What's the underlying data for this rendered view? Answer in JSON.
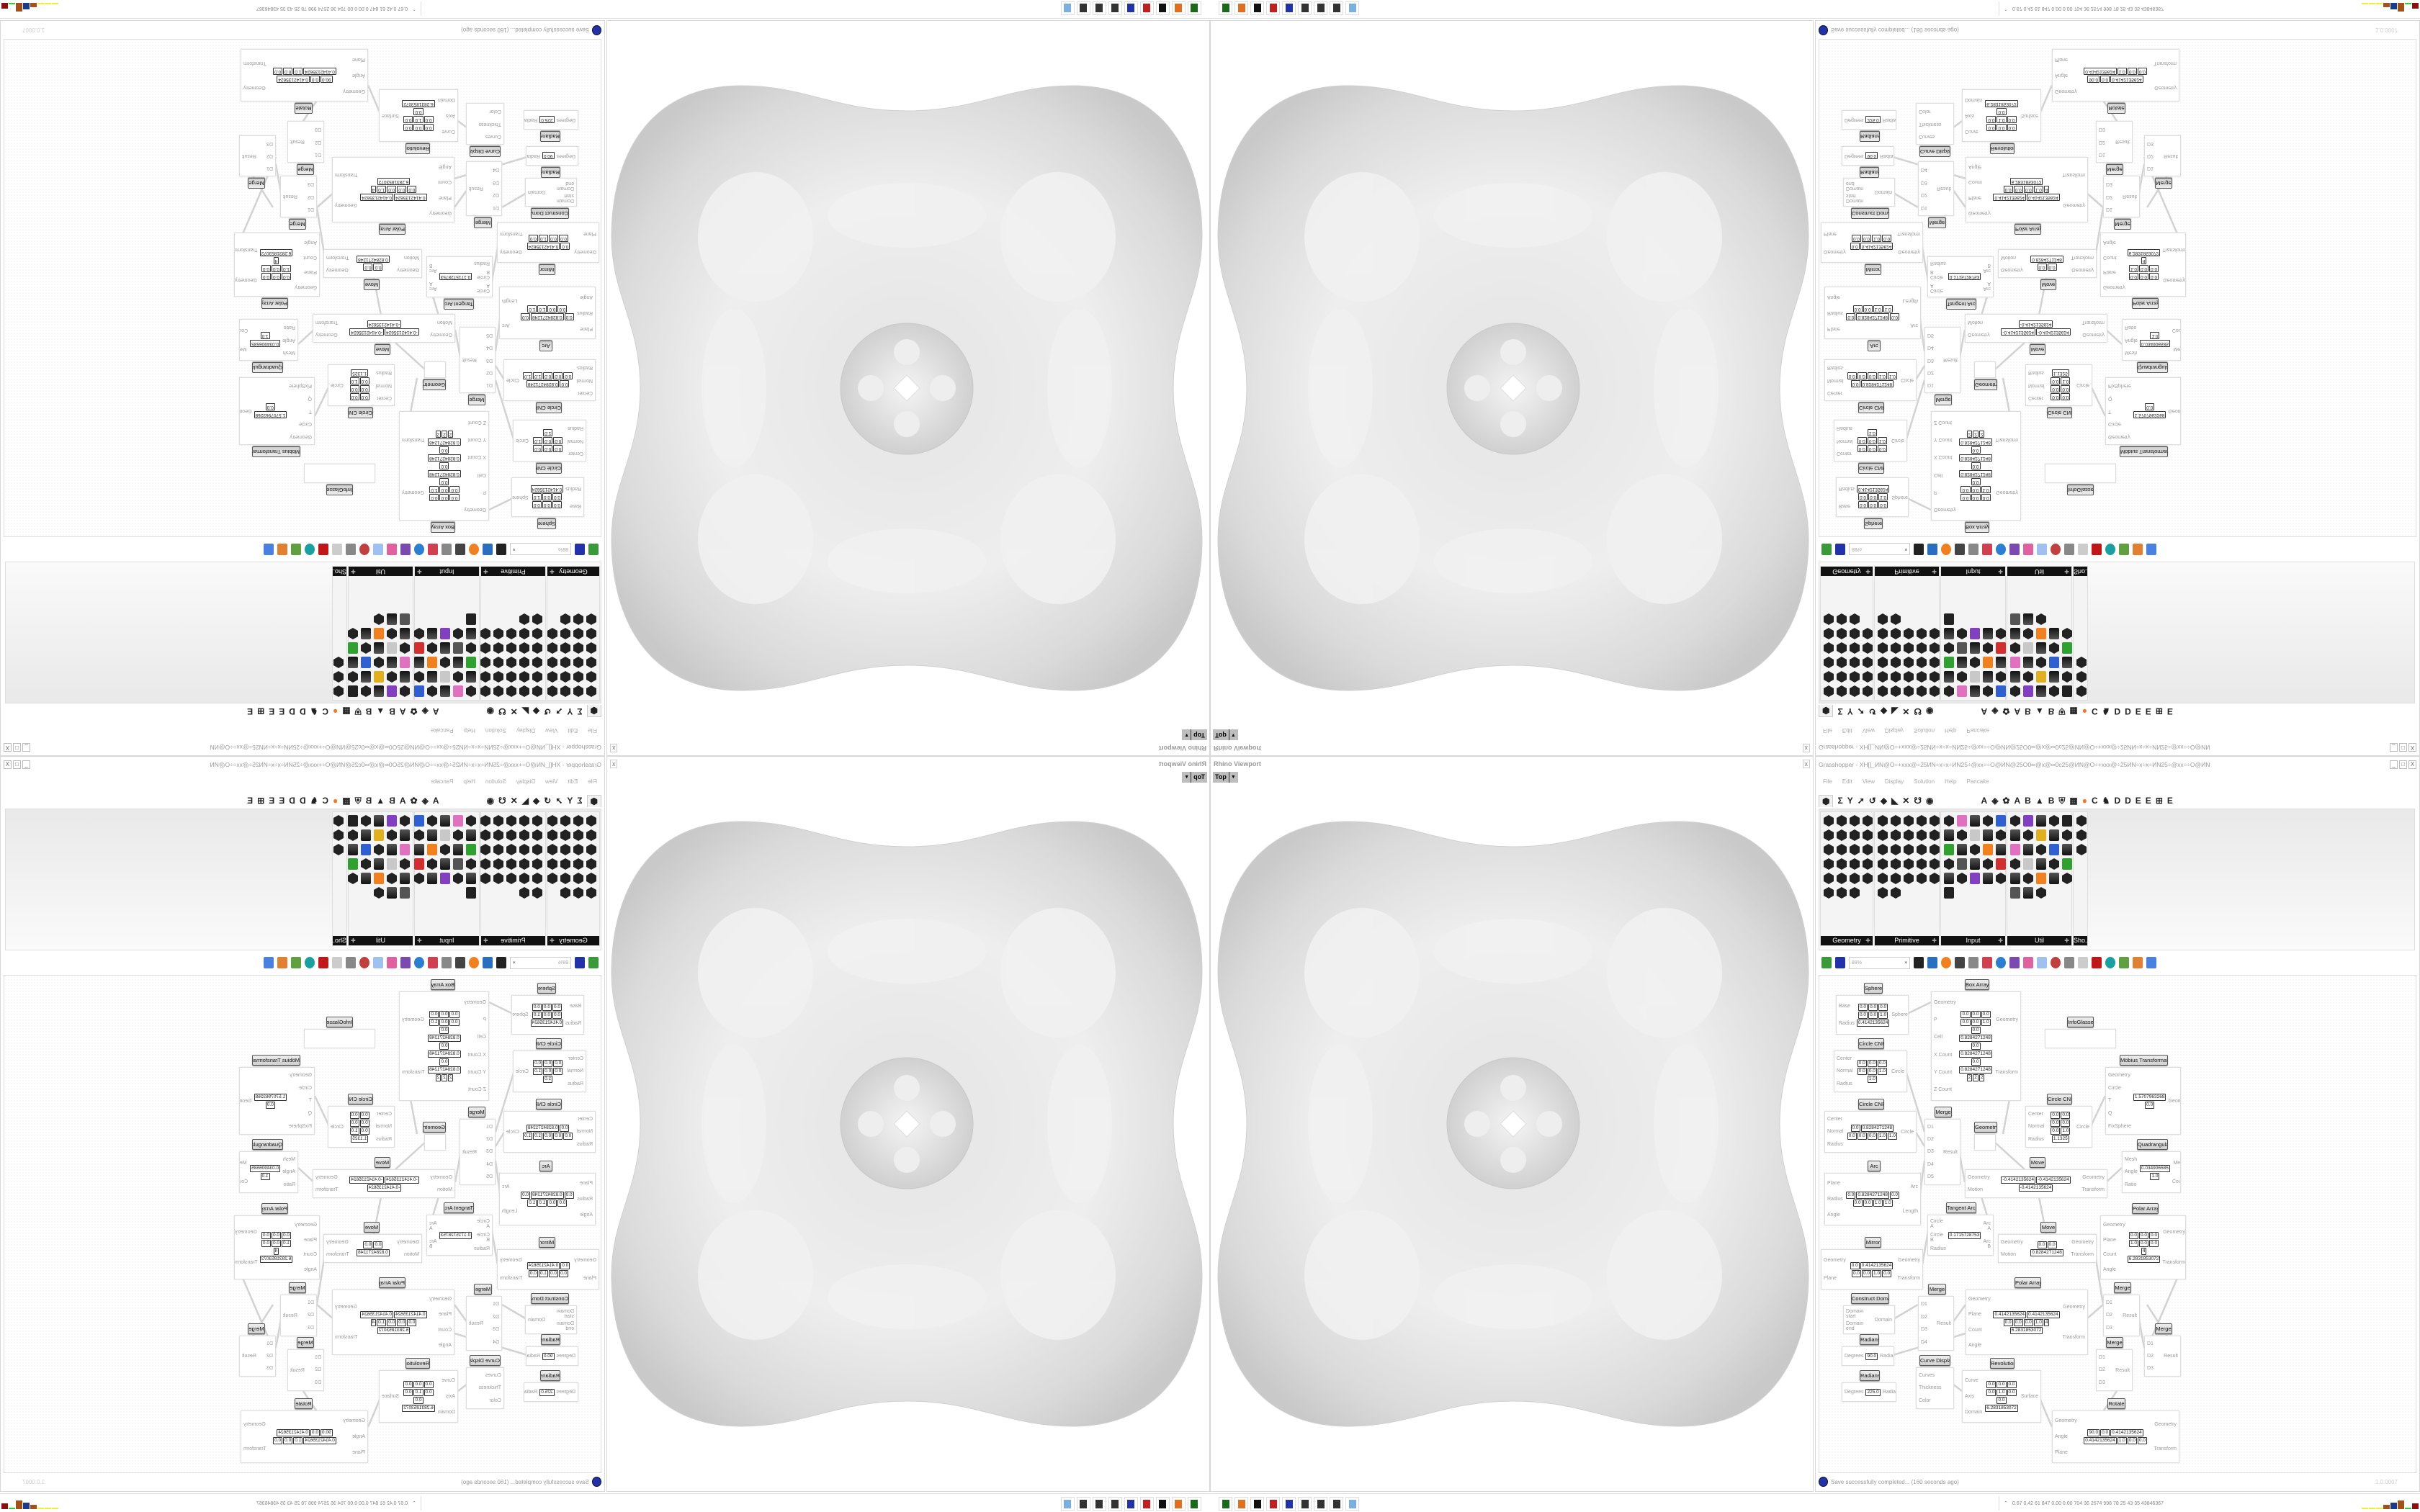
{
  "colors": {
    "accent_orange": "#f07820",
    "status_blue": "#2233aa",
    "palette_label_bg": "#111111",
    "mesh_gray": "#d6d6d6"
  },
  "viewport": {
    "title": "Rhino Viewport",
    "view_name": "Top",
    "close_label": "x"
  },
  "grasshopper": {
    "title": "Grasshopper - XH[]_ИN@O÷+xxx@÷25ИN÷x÷x÷ИN25÷@xx÷÷O@ИN@25O0∞@x@∞0c25@ИN@O÷+xxx@÷25ИN÷x÷x÷ИN25÷@xx÷÷O@ИN",
    "window_buttons": [
      "_",
      "□",
      "X"
    ],
    "menu": [
      "File",
      "Edit",
      "View",
      "Display",
      "Solution",
      "Help",
      "Pancake"
    ],
    "tabs": [
      "⬢",
      "Σ",
      "Y",
      "➚",
      "↺",
      "◆",
      "◣",
      "✕",
      "☋",
      "◉",
      "A",
      "◈",
      "✿",
      "A",
      "B",
      "▲",
      "B",
      "⛨",
      "▦",
      "●",
      "C",
      "♞",
      "D",
      "D",
      "E",
      "E",
      "⊞",
      "E"
    ],
    "palette_groups": [
      {
        "label": "Geometry"
      },
      {
        "label": "Primitive"
      },
      {
        "label": "Input"
      },
      {
        "label": "Util"
      },
      {
        "label": "Sho..."
      }
    ],
    "zoom": "88%",
    "status": "Save successfully completed... (160 seconds ago)",
    "version": "1.0.0007"
  },
  "canvas": {
    "components": [
      {
        "title": "Sphere",
        "inputs": [
          "Base",
          "Radius"
        ],
        "outputs": [
          "Sphere"
        ],
        "values": [
          "0.0",
          "0.0",
          "0.0",
          "0.0",
          "0.0",
          "1.0",
          "0.4142135624"
        ]
      },
      {
        "title": "Box Array",
        "inputs": [
          "Geometry",
          "P",
          "Cell",
          "X Count",
          "Y Count",
          "Z Count"
        ],
        "outputs": [
          "Geometry",
          "Transform"
        ],
        "values": [
          "0.0",
          "0.0",
          "0.0",
          "0.0",
          "0.0",
          "1.0",
          "0.0",
          "0.8284271248",
          "0.0",
          "0.8284271248",
          "0.0",
          "0.8284271248",
          "2",
          "2",
          "2"
        ]
      },
      {
        "title": "Circle CNR",
        "inputs": [
          "Center",
          "Normal",
          "Radius"
        ],
        "outputs": [
          "Circle"
        ],
        "values": [
          "0.0",
          "0.0",
          "0.0",
          "0.0",
          "0.0",
          "1.0",
          "1.0"
        ]
      },
      {
        "title": "Circle CNR",
        "inputs": [
          "Center",
          "Normal",
          "Radius"
        ],
        "outputs": [
          "Circle"
        ],
        "values": [
          "0.0",
          "0.8284271248",
          "0.0",
          "0.0",
          "0.0",
          "1.0",
          "1.0"
        ]
      },
      {
        "title": "Arc",
        "inputs": [
          "Plane",
          "Radius",
          "Angle"
        ],
        "outputs": [
          "Arc",
          "Length"
        ],
        "values": [
          "0.0",
          "0.8284271248",
          "0.0",
          "0.0",
          "0.0",
          "1.0",
          "1.0"
        ]
      },
      {
        "title": "Merge",
        "inputs": [
          "D1",
          "D2",
          "D3",
          "D4",
          "D5"
        ],
        "outputs": [
          "Result"
        ],
        "values": []
      },
      {
        "title": "Geometry",
        "inputs": [],
        "outputs": [],
        "values": []
      },
      {
        "title": "InfoGlasses",
        "inputs": [],
        "outputs": [],
        "values": []
      },
      {
        "title": "Möbius Transformation",
        "inputs": [
          "Geometry",
          "Circle",
          "T",
          "Q",
          "FixSphere"
        ],
        "outputs": [
          "Geometry"
        ],
        "values": [
          "1.5707963268",
          "0.0"
        ]
      },
      {
        "title": "Circle CNR",
        "inputs": [
          "Center",
          "Normal",
          "Radius"
        ],
        "outputs": [
          "Circle"
        ],
        "values": [
          "0.0",
          "0.0",
          "0.0",
          "0.0",
          "0.0",
          "1.0",
          "1.1325"
        ]
      },
      {
        "title": "Quadrangulate",
        "inputs": [
          "Mesh",
          "Angle",
          "Ratio"
        ],
        "outputs": [
          "Mesh",
          "Count"
        ],
        "values": [
          "0.034906585",
          "1.0"
        ]
      },
      {
        "title": "Move",
        "inputs": [
          "Geometry",
          "Motion"
        ],
        "outputs": [
          "Geometry",
          "Transform"
        ],
        "values": [
          "-0.4142135624",
          "-0.4142135624",
          "-0.4142135624"
        ]
      },
      {
        "title": "Tangent Arcs",
        "inputs": [
          "Circle A",
          "Circle B",
          "Radius"
        ],
        "outputs": [
          "Arc A",
          "Arc B"
        ],
        "values": [
          "0.1715728753"
        ]
      },
      {
        "title": "Polar Array",
        "inputs": [
          "Geometry",
          "Plane",
          "Count",
          "Angle"
        ],
        "outputs": [
          "Geometry",
          "Transform"
        ],
        "values": [
          "0.0",
          "0.0",
          "0.0",
          "1.0",
          "0.0",
          "0.0",
          "4",
          "6.2831853072"
        ]
      },
      {
        "title": "Mirror",
        "inputs": [
          "Geometry",
          "Plane"
        ],
        "outputs": [
          "Geometry",
          "Transform"
        ],
        "values": [
          "0.0",
          "0.4142135624",
          "0.0",
          "0.0",
          "1.0",
          "0.0"
        ]
      },
      {
        "title": "Move",
        "inputs": [
          "Geometry",
          "Motion"
        ],
        "outputs": [
          "Geometry",
          "Transform"
        ],
        "values": [
          "0.0",
          "0.0",
          "0.8284271248"
        ]
      },
      {
        "title": "Construct Domain",
        "inputs": [
          "Domain start",
          "Domain end"
        ],
        "outputs": [
          "Domain"
        ],
        "values": []
      },
      {
        "title": "Merge",
        "inputs": [
          "D1",
          "D2",
          "D3",
          "D4"
        ],
        "outputs": [
          "Result"
        ],
        "values": []
      },
      {
        "title": "Polar Array",
        "inputs": [
          "Geometry",
          "Plane",
          "Count",
          "Angle"
        ],
        "outputs": [
          "Geometry",
          "Transform"
        ],
        "values": [
          "0.4142135624",
          "0.4142135624",
          "0.0",
          "0.0",
          "0.0",
          "1.0",
          "4",
          "6.2831853072"
        ]
      },
      {
        "title": "Merge",
        "inputs": [
          "D1",
          "D2",
          "D3"
        ],
        "outputs": [
          "Result"
        ],
        "values": []
      },
      {
        "title": "Merge",
        "inputs": [
          "D1",
          "D2",
          "D3"
        ],
        "outputs": [
          "Result"
        ],
        "values": []
      },
      {
        "title": "Merge",
        "inputs": [
          "D1",
          "D2",
          "D3"
        ],
        "outputs": [
          "Result"
        ],
        "values": []
      },
      {
        "title": "Radians",
        "inputs": [
          "Degrees"
        ],
        "outputs": [
          "Radians"
        ],
        "values": [
          "90.0"
        ]
      },
      {
        "title": "Radians",
        "inputs": [
          "Degrees"
        ],
        "outputs": [
          "Radians"
        ],
        "values": [
          "225.0"
        ]
      },
      {
        "title": "Curve Display",
        "inputs": [
          "Curves",
          "Thickness",
          "Color"
        ],
        "outputs": [],
        "values": []
      },
      {
        "title": "Revolution",
        "inputs": [
          "Curve",
          "Axis",
          "Domain"
        ],
        "outputs": [
          "Surface"
        ],
        "values": [
          "0.0",
          "0.0",
          "0.0",
          "0.0",
          "1.0",
          "0.0",
          "0.0",
          "6.2831853072"
        ]
      },
      {
        "title": "Rotate",
        "inputs": [
          "Geometry",
          "Angle",
          "Plane"
        ],
        "outputs": [
          "Geometry",
          "Transform"
        ],
        "values": [
          "90.0",
          "0.0",
          "0.4142135624",
          "0.4142135624",
          "1.0",
          "0.0",
          "0.0"
        ]
      }
    ]
  },
  "taskbar": {
    "icons": [
      "rhino-launcher-icon",
      "firefox-icon",
      "inkscape-icon",
      "settings-icon",
      "floppy-64-icon",
      "grasshopper-icon",
      "grasshopper-icon",
      "grasshopper-icon",
      "calculator-icon"
    ],
    "stats": "0.67 0.42 61 847 0.00 0.00 704 36 2574 998 78 25 43 35 43846367"
  }
}
